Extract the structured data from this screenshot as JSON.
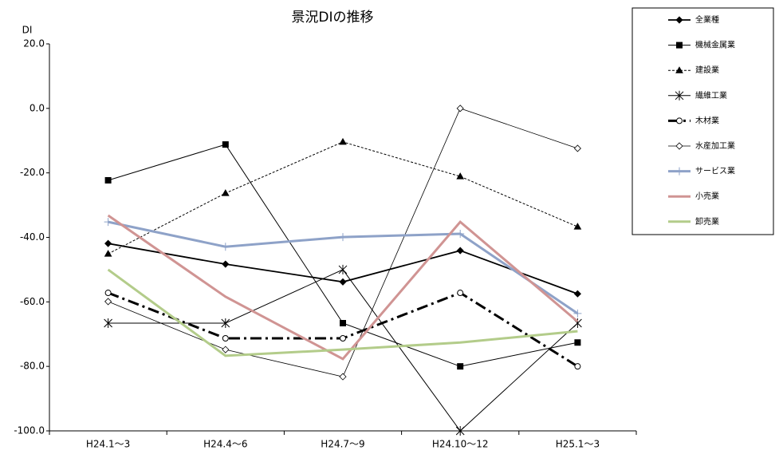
{
  "chart_data": {
    "type": "line",
    "title": "景況DIの推移",
    "y_label": "DI",
    "categories": [
      "H24.1～3",
      "H24.4～6",
      "H24.7～9",
      "H24.10～12",
      "H25.1～3"
    ],
    "ylim": [
      -100,
      20
    ],
    "yticks": [
      {
        "value": 20,
        "label": "20.0"
      },
      {
        "value": 0,
        "label": "0.0"
      },
      {
        "value": -20,
        "label": "-20.0"
      },
      {
        "value": -40,
        "label": "-40.0"
      },
      {
        "value": -60,
        "label": "-60.0"
      },
      {
        "value": -80,
        "label": "-80.0"
      },
      {
        "value": -100,
        "label": "-100.0"
      }
    ],
    "grid": false,
    "legend": "right",
    "series": [
      {
        "name": "全業種",
        "color": "#000000",
        "line_width": 1.8,
        "line_style": "solid",
        "marker": "diamond",
        "values": [
          -41.9,
          -48.3,
          -53.8,
          -44.1,
          -57.5
        ]
      },
      {
        "name": "機械金属業",
        "color": "#000000",
        "line_width": 1,
        "line_style": "solid",
        "marker": "square",
        "values": [
          -22.3,
          -11.2,
          -66.6,
          -80.0,
          -72.6
        ]
      },
      {
        "name": "建設業",
        "color": "#000000",
        "line_width": 1,
        "line_style": "dashed",
        "marker": "triangle",
        "values": [
          -45.1,
          -26.3,
          -10.4,
          -21.1,
          -36.7
        ]
      },
      {
        "name": "繊維工業",
        "color": "#000000",
        "line_width": 1,
        "line_style": "solid",
        "marker": "asterisk",
        "values": [
          -66.6,
          -66.6,
          -50.0,
          -100.0,
          -66.6
        ]
      },
      {
        "name": "木材業",
        "color": "#000000",
        "line_width": 3,
        "line_style": "dashdot",
        "marker": "circle",
        "values": [
          -57.2,
          -71.3,
          -71.3,
          -57.2,
          -80.0
        ]
      },
      {
        "name": "水産加工業",
        "color": "#000000",
        "line_width": 0.8,
        "line_style": "solid",
        "marker": "open-diamond",
        "values": [
          -59.9,
          -74.8,
          -83.2,
          0.0,
          -12.4
        ]
      },
      {
        "name": "サービス業",
        "color": "#8ea2c8",
        "line_width": 3,
        "line_style": "solid",
        "marker": "plus",
        "values": [
          -35.2,
          -42.9,
          -39.9,
          -38.9,
          -63.6
        ]
      },
      {
        "name": "小売業",
        "color": "#d09493",
        "line_width": 3,
        "line_style": "solid",
        "marker": "none",
        "values": [
          -33.2,
          -58.4,
          -77.7,
          -35.2,
          -66.1
        ]
      },
      {
        "name": "卸売業",
        "color": "#b3cc8a",
        "line_width": 3,
        "line_style": "solid",
        "marker": "none",
        "values": [
          -50.0,
          -76.7,
          -74.8,
          -72.6,
          -69.1
        ]
      }
    ]
  }
}
